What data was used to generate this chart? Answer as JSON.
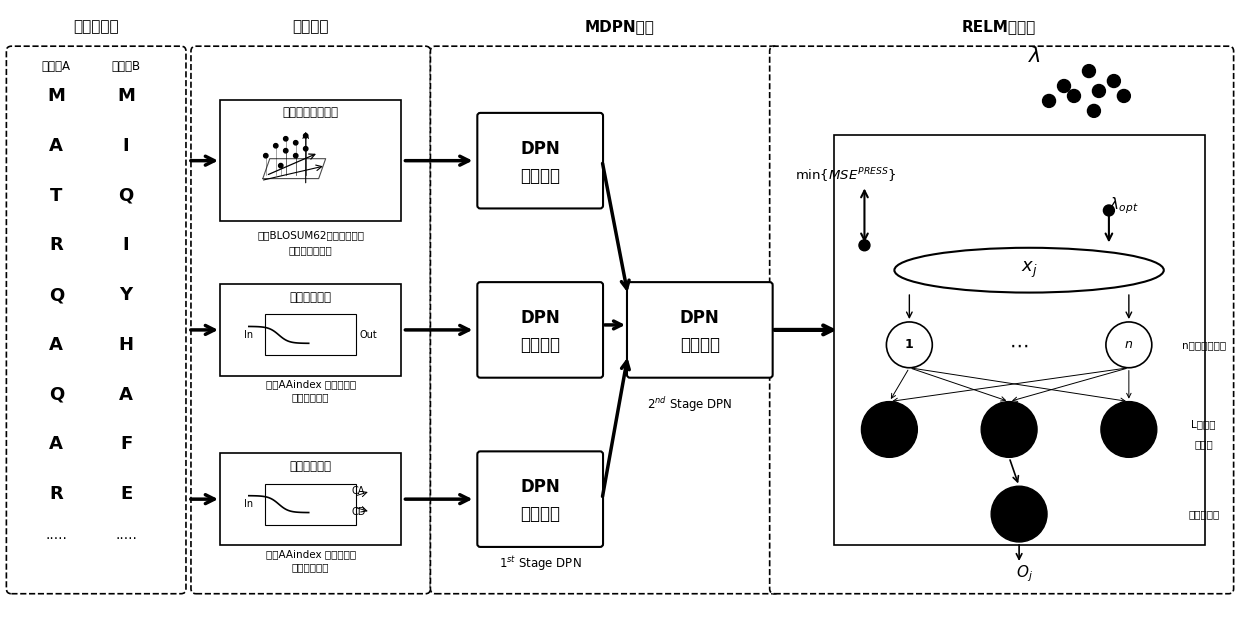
{
  "bg_color": "#ffffff",
  "section_headers": {
    "protein_seq": "蛋白质序列",
    "feature_extract": "特征提取",
    "mdpn_encode": "MDPN编码",
    "relm_classifier": "RELM分类器"
  },
  "protein_A_label": "蛋白质A",
  "protein_B_label": "蛋白质B",
  "protein_A_seq": [
    "M",
    "A",
    "T",
    "R",
    "Q",
    "A",
    "Q",
    "A",
    "R",
    "·····"
  ],
  "protein_B_seq": [
    "M",
    "I",
    "Q",
    "I",
    "Y",
    "H",
    "A",
    "F",
    "E",
    "·····"
  ],
  "feature_boxes": [
    {
      "title": "二维线性判别定律",
      "desc1": "基于BLOSUM62矩阵的氨基酸",
      "desc2": "突变率特征提取"
    },
    {
      "title": "连续小波变换",
      "desc1": "基于AAindex 矩阵的氨基",
      "desc2": "酸疏水性特征"
    },
    {
      "title": "离散小波变换",
      "desc1": "基于AAindex 矩阵的氨基",
      "desc2": "酸亲水性特征"
    }
  ],
  "dpn_label_line1": "DPN",
  "dpn_label_line2": "基本单元",
  "stage1_label": "1$^{st}$ Stage DPN",
  "stage2_label": "2$^{nd}$ Stage DPN",
  "relm_labels": {
    "input_neurons": "n个输入神经元",
    "hidden_neurons_line1": "L个隐藏",
    "hidden_neurons_line2": "神经元",
    "output_neuron": "输出神经元"
  }
}
